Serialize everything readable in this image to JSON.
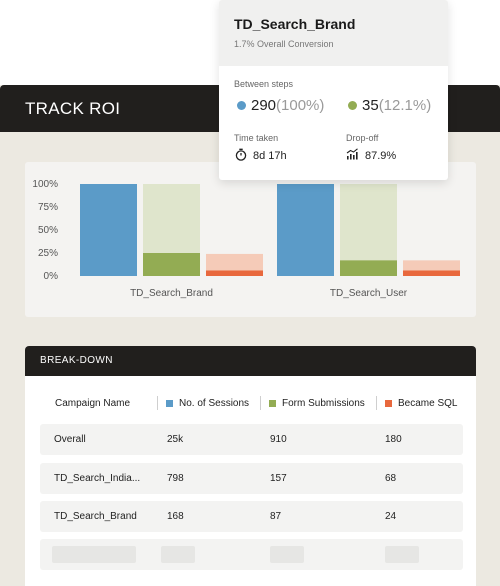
{
  "roi": {
    "title": "TRACK ROI"
  },
  "chart_data": {
    "type": "bar",
    "categories": [
      "TD_Search_Brand",
      "TD_Search_User"
    ],
    "series": [
      {
        "name": "No. of Sessions",
        "color": "#5b9bc8",
        "values": [
          100,
          100
        ]
      },
      {
        "name": "Form Submissions",
        "color": "#93ac53",
        "background_color": "#dfe5cc",
        "values": [
          25,
          17
        ]
      },
      {
        "name": "Became SQL",
        "color": "#e8683d",
        "background_color": "#f5cbb8",
        "values": [
          6,
          6
        ],
        "background_values": [
          24,
          17
        ]
      }
    ],
    "yticks": [
      "100%",
      "75%",
      "50%",
      "25%",
      "0%"
    ],
    "ylim": [
      0,
      100
    ]
  },
  "breakdown": {
    "title": "BREAK-DOWN",
    "columns": [
      "Campaign Name",
      "No. of Sessions",
      "Form Submissions",
      "Became SQL"
    ],
    "column_colors": [
      "",
      "#5b9bc8",
      "#93ac53",
      "#e8683d"
    ],
    "rows": [
      [
        "Overall",
        "25k",
        "910",
        "180"
      ],
      [
        "TD_Search_India...",
        "798",
        "157",
        "68"
      ],
      [
        "TD_Search_Brand",
        "168",
        "87",
        "24"
      ]
    ]
  },
  "tooltip": {
    "title": "TD_Search_Brand",
    "subtitle": "1.7% Overall Conversion",
    "between_label": "Between steps",
    "step1_value": "290",
    "step1_pct": "(100%)",
    "step1_color": "#5b9bc8",
    "step2_value": "35",
    "step2_pct": "(12.1%)",
    "step2_color": "#93ac53",
    "time_label": "Time taken",
    "time_value": "8d 17h",
    "time_icon": "stopwatch-icon",
    "dropoff_label": "Drop-off",
    "dropoff_value": "87.9%",
    "dropoff_icon": "trend-chart-icon"
  }
}
